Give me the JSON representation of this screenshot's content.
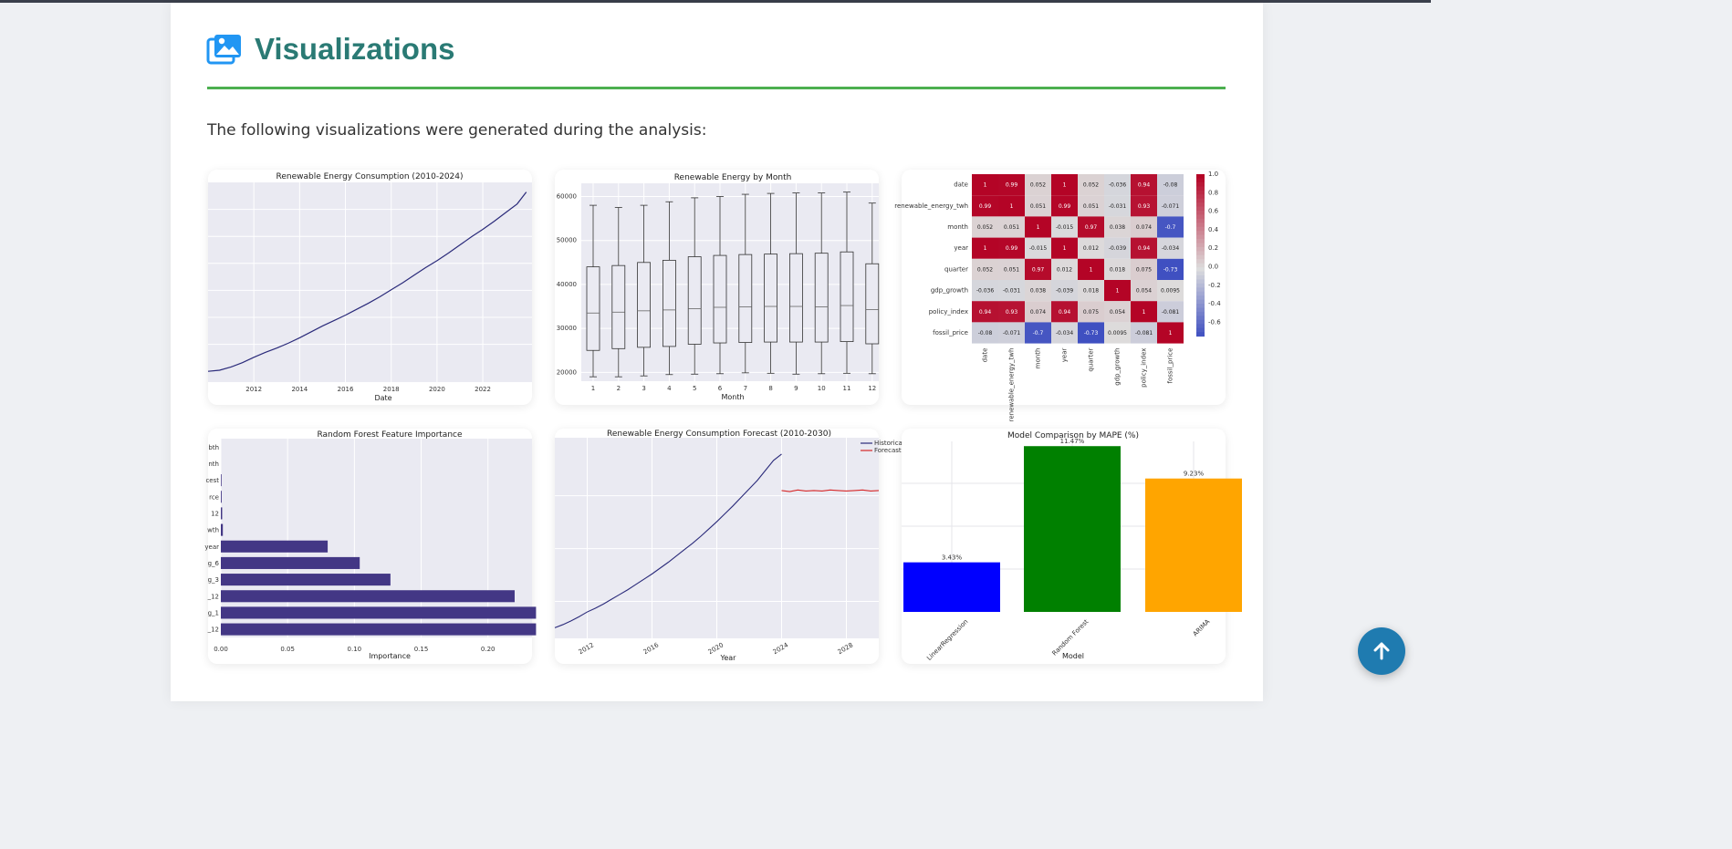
{
  "section": {
    "title": "Visualizations",
    "intro": "The following visualizations were generated during the analysis:"
  },
  "colors": {
    "accent_title": "#2a7a74",
    "rule": "#4caf50",
    "icon": "#2196f3",
    "fab": "#1f7bb0"
  },
  "scroll_top_icon": "arrow-up-icon",
  "chart_data": [
    {
      "type": "line",
      "title": "Renewable Energy Consumption (2010-2024)",
      "xlabel": "Date",
      "ylabel": "",
      "x_ticks": [
        "2012",
        "2014",
        "2016",
        "2018",
        "2020",
        "2022"
      ],
      "x": [
        2010.0,
        2010.5,
        2011.0,
        2011.5,
        2012.0,
        2012.5,
        2013.0,
        2013.5,
        2014.0,
        2014.5,
        2015.0,
        2015.5,
        2016.0,
        2016.5,
        2017.0,
        2017.5,
        2018.0,
        2018.5,
        2019.0,
        2019.5,
        2020.0,
        2020.5,
        2021.0,
        2021.5,
        2022.0,
        2022.5,
        2023.0,
        2023.5,
        2023.9
      ],
      "values": [
        20000,
        20200,
        20800,
        21600,
        22600,
        23500,
        24300,
        25200,
        26200,
        27300,
        28400,
        29400,
        30400,
        31500,
        32600,
        33800,
        35100,
        36400,
        37800,
        39200,
        40500,
        41900,
        43400,
        44900,
        46300,
        47800,
        49400,
        51000,
        53200
      ],
      "ylim": [
        18000,
        55000
      ]
    },
    {
      "type": "box",
      "title": "Renewable Energy by Month",
      "xlabel": "Month",
      "ylabel": "",
      "y_ticks": [
        "20000",
        "30000",
        "40000",
        "50000",
        "60000"
      ],
      "ylim": [
        18000,
        63000
      ],
      "categories": [
        "1",
        "2",
        "3",
        "4",
        "5",
        "6",
        "7",
        "8",
        "9",
        "10",
        "11",
        "12"
      ],
      "boxes": [
        {
          "min": 19000,
          "q1": 25000,
          "median": 33500,
          "q3": 44000,
          "max": 58000
        },
        {
          "min": 19000,
          "q1": 25400,
          "median": 33700,
          "q3": 44300,
          "max": 57500
        },
        {
          "min": 19200,
          "q1": 25700,
          "median": 34000,
          "q3": 45000,
          "max": 58000
        },
        {
          "min": 19500,
          "q1": 25900,
          "median": 34200,
          "q3": 45500,
          "max": 58800
        },
        {
          "min": 19600,
          "q1": 26400,
          "median": 34500,
          "q3": 46300,
          "max": 59700
        },
        {
          "min": 19700,
          "q1": 26700,
          "median": 34800,
          "q3": 46600,
          "max": 60000
        },
        {
          "min": 19900,
          "q1": 26800,
          "median": 34900,
          "q3": 46800,
          "max": 60500
        },
        {
          "min": 19800,
          "q1": 26900,
          "median": 35000,
          "q3": 46900,
          "max": 60700
        },
        {
          "min": 19600,
          "q1": 26900,
          "median": 35000,
          "q3": 47000,
          "max": 60800
        },
        {
          "min": 19700,
          "q1": 26900,
          "median": 34900,
          "q3": 47100,
          "max": 60800
        },
        {
          "min": 19800,
          "q1": 27000,
          "median": 35200,
          "q3": 47400,
          "max": 61000
        },
        {
          "min": 19700,
          "q1": 26500,
          "median": 34300,
          "q3": 44700,
          "max": 58500
        }
      ]
    },
    {
      "type": "heatmap",
      "title": "",
      "labels": [
        "date",
        "renewable_energy_twh",
        "month",
        "year",
        "quarter",
        "gdp_growth",
        "policy_index",
        "fossil_price"
      ],
      "matrix": [
        [
          "1",
          "0.99",
          "0.052",
          "1",
          "0.052",
          "-0.036",
          "0.94",
          "-0.08"
        ],
        [
          "0.99",
          "1",
          "0.051",
          "0.99",
          "0.051",
          "-0.031",
          "0.93",
          "-0.071"
        ],
        [
          "0.052",
          "0.051",
          "1",
          "-0.015",
          "0.97",
          "0.038",
          "0.074",
          "-0.7"
        ],
        [
          "1",
          "0.99",
          "-0.015",
          "1",
          "0.012",
          "-0.039",
          "0.94",
          "-0.034"
        ],
        [
          "0.052",
          "0.051",
          "0.97",
          "0.012",
          "1",
          "0.018",
          "0.075",
          "-0.73"
        ],
        [
          "-0.036",
          "-0.031",
          "0.038",
          "-0.039",
          "0.018",
          "1",
          "0.054",
          "0.0095"
        ],
        [
          "0.94",
          "0.93",
          "0.074",
          "0.94",
          "0.075",
          "0.054",
          "1",
          "-0.081"
        ],
        [
          "-0.08",
          "-0.071",
          "-0.7",
          "-0.034",
          "-0.73",
          "0.0095",
          "-0.081",
          "1"
        ]
      ],
      "colorbar_ticks": [
        "1.0",
        "0.8",
        "0.6",
        "0.4",
        "0.2",
        "0.0",
        "-0.2",
        "-0.4",
        "-0.6"
      ],
      "colorbar_range": [
        -0.75,
        1.0
      ]
    },
    {
      "type": "barh",
      "title": "Random Forest Feature Importance",
      "xlabel": "Importance",
      "ylabel": "",
      "x_ticks": [
        "0.00",
        "0.05",
        "0.10",
        "0.15",
        "0.20"
      ],
      "xlim": [
        0,
        0.233
      ],
      "categories": [
        "bth",
        "nth",
        "cest",
        "rce",
        "12",
        "wth",
        "year",
        "g_6",
        "g_3",
        "_12",
        "g_1",
        "_12"
      ],
      "values": [
        0.0,
        0.0,
        0.0005,
        0.0006,
        0.001,
        0.0015,
        0.08,
        0.104,
        0.127,
        0.22,
        0.236,
        0.236
      ],
      "color": "#433785"
    },
    {
      "type": "line",
      "title": "Renewable Energy Consumption Forecast (2010-2030)",
      "xlabel": "Year",
      "ylabel": "",
      "x_ticks": [
        "2012",
        "2016",
        "2020",
        "2024",
        "2028"
      ],
      "xlim": [
        2010,
        2030
      ],
      "ylim": [
        18000,
        56000
      ],
      "legend": "top-right",
      "series": [
        {
          "name": "Historical",
          "color": "#2a2a7a",
          "x": [
            2010.0,
            2010.5,
            2011.0,
            2011.5,
            2012.0,
            2012.5,
            2013.0,
            2013.5,
            2014.0,
            2014.5,
            2015.0,
            2015.5,
            2016.0,
            2016.5,
            2017.0,
            2017.5,
            2018.0,
            2018.5,
            2019.0,
            2019.5,
            2020.0,
            2020.5,
            2021.0,
            2021.5,
            2022.0,
            2022.5,
            2023.0,
            2023.5,
            2024.0
          ],
          "values": [
            20000,
            20600,
            21300,
            22100,
            23000,
            23700,
            24500,
            25400,
            26300,
            27200,
            28200,
            29200,
            30200,
            31300,
            32400,
            33600,
            34800,
            36000,
            37300,
            38700,
            40100,
            41600,
            43100,
            44700,
            46300,
            47900,
            49800,
            51700,
            52900
          ]
        },
        {
          "name": "Forecast",
          "color": "#d62728",
          "x": [
            2024.0,
            2024.5,
            2025.0,
            2025.5,
            2026.0,
            2026.5,
            2027.0,
            2027.5,
            2028.0,
            2028.5,
            2029.0,
            2029.5,
            2030.0
          ],
          "values": [
            46000,
            45800,
            46100,
            45900,
            46000,
            45900,
            46100,
            46000,
            45900,
            46000,
            46100,
            45900,
            46000
          ]
        }
      ]
    },
    {
      "type": "bar",
      "title": "Model Comparison by MAPE (%)",
      "xlabel": "Model",
      "ylabel": "",
      "categories": [
        "LinearRegression",
        "Random Forest",
        "ARIMA"
      ],
      "values": [
        3.43,
        11.47,
        9.23
      ],
      "value_labels": [
        "3.43%",
        "11.47%",
        "9.23%"
      ],
      "colors": [
        "#0000ff",
        "#008000",
        "#ffa500"
      ],
      "ylim": [
        0,
        11.8
      ]
    }
  ]
}
